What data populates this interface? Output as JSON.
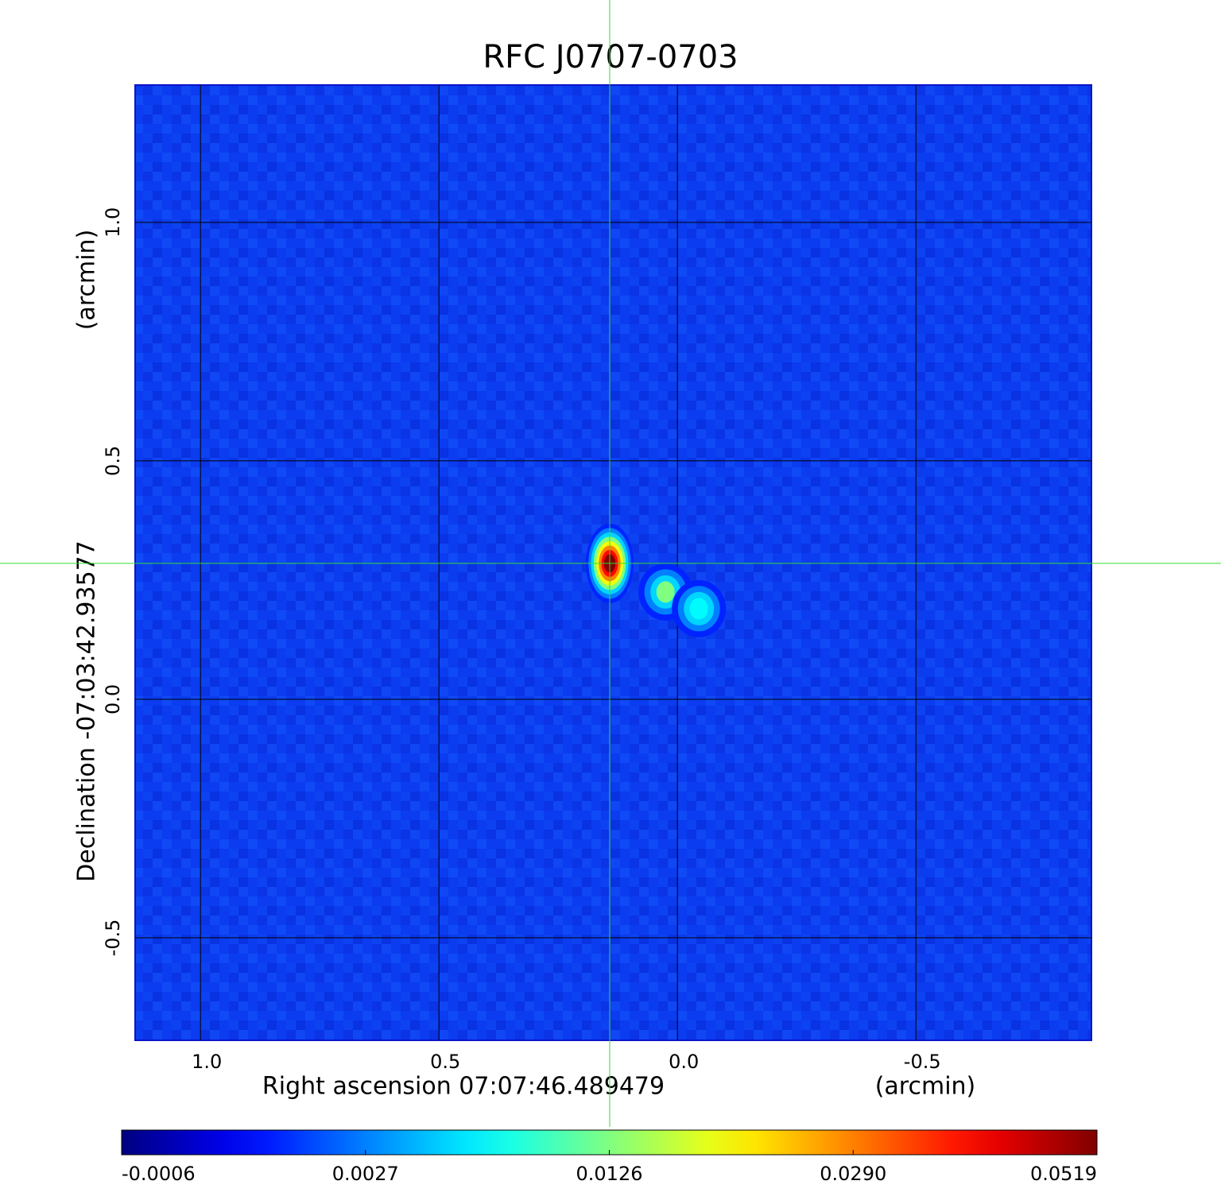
{
  "chart_data": {
    "type": "image",
    "title": "RFC J0707-0703",
    "title_color": "#0a14c8",
    "x_label": "Right ascension  07:07:46.489479",
    "x_unit": "(arcmin)",
    "y_label": "Declination  -07:03:42.93577",
    "y_unit": "(arcmin)",
    "xlim": [
      1.137,
      -0.868
    ],
    "ylim": [
      -0.715,
      1.288
    ],
    "xticks": [
      {
        "value": 1.0,
        "label": "1.0"
      },
      0.5,
      {
        "value": 0.0,
        "label": "0.0"
      },
      -0.5
    ],
    "yticks": [
      -0.5,
      {
        "value": 0.0,
        "label": "0.0"
      },
      0.5,
      {
        "value": 1.0,
        "label": "1.0"
      }
    ],
    "grid": true,
    "colormap": "jet",
    "background_value": 0.0004,
    "crosshair": {
      "x": 0.142,
      "y": 0.285,
      "color": "#33dd33"
    },
    "sources": [
      {
        "x": 0.142,
        "y": 0.285,
        "peak": 0.0519
      },
      {
        "x": 0.025,
        "y": 0.225,
        "peak": 0.0126
      },
      {
        "x": -0.045,
        "y": 0.19,
        "peak": 0.0075
      }
    ],
    "colorbar_ticks": [
      -0.0006,
      0.0027,
      0.0126,
      {
        "value": 0.029,
        "label": "0.0290"
      },
      0.0519
    ]
  }
}
